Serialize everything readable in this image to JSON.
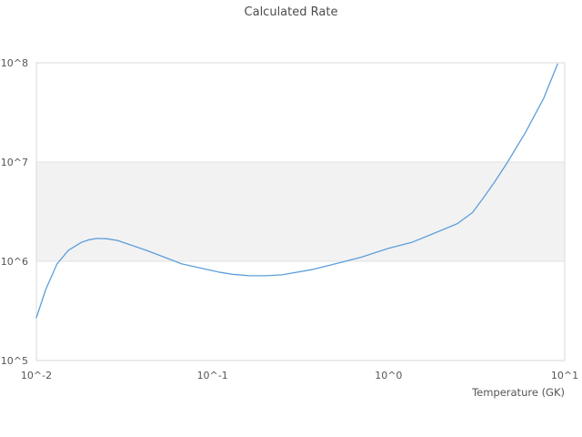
{
  "colors": {
    "background": "#ffffff",
    "line": "#5d9fdb",
    "band_fill": "#f2f2f2",
    "gridline": "#e2e2e2",
    "frame": "#d9d9d9",
    "title_text": "#4c4c4c",
    "tick_text": "#555555"
  },
  "chart_data": {
    "type": "line",
    "title": "Calculated Rate",
    "xlabel": "Temperature (GK)",
    "ylabel": "",
    "x_scale": "log",
    "y_scale": "log",
    "xlim": [
      0.01,
      10
    ],
    "ylim": [
      100000,
      100000000
    ],
    "grid": "horizontal-only",
    "legend": "none",
    "x_ticks": [
      {
        "value": 0.01,
        "label": "10^-2"
      },
      {
        "value": 0.1,
        "label": "10^-1"
      },
      {
        "value": 1,
        "label": "10^0"
      },
      {
        "value": 10,
        "label": "10^1"
      }
    ],
    "y_ticks": [
      {
        "value": 100000,
        "label": "10^5"
      },
      {
        "value": 1000000,
        "label": "10^6"
      },
      {
        "value": 10000000,
        "label": "10^7"
      },
      {
        "value": 100000000,
        "label": "10^8"
      }
    ],
    "band": {
      "from": 1000000,
      "to": 10000000
    },
    "series": [
      {
        "name": "Calculated Rate",
        "x": [
          0.01,
          0.0113,
          0.0131,
          0.0152,
          0.018,
          0.02,
          0.022,
          0.025,
          0.029,
          0.042,
          0.067,
          0.108,
          0.13,
          0.163,
          0.2,
          0.248,
          0.375,
          0.52,
          0.7,
          1.0,
          1.35,
          1.73,
          2.46,
          3.0,
          3.5,
          4.0,
          4.74,
          6.0,
          7.6,
          9.1
        ],
        "y": [
          270000,
          520000,
          940000,
          1290000,
          1550000,
          1650000,
          1700000,
          1690000,
          1620000,
          1290000,
          940000,
          780000,
          740000,
          715000,
          715000,
          730000,
          830000,
          960000,
          1100000,
          1350000,
          1550000,
          1850000,
          2400000,
          3100000,
          4500000,
          6300000,
          10000000,
          20000000,
          44000000,
          97000000
        ]
      }
    ]
  }
}
